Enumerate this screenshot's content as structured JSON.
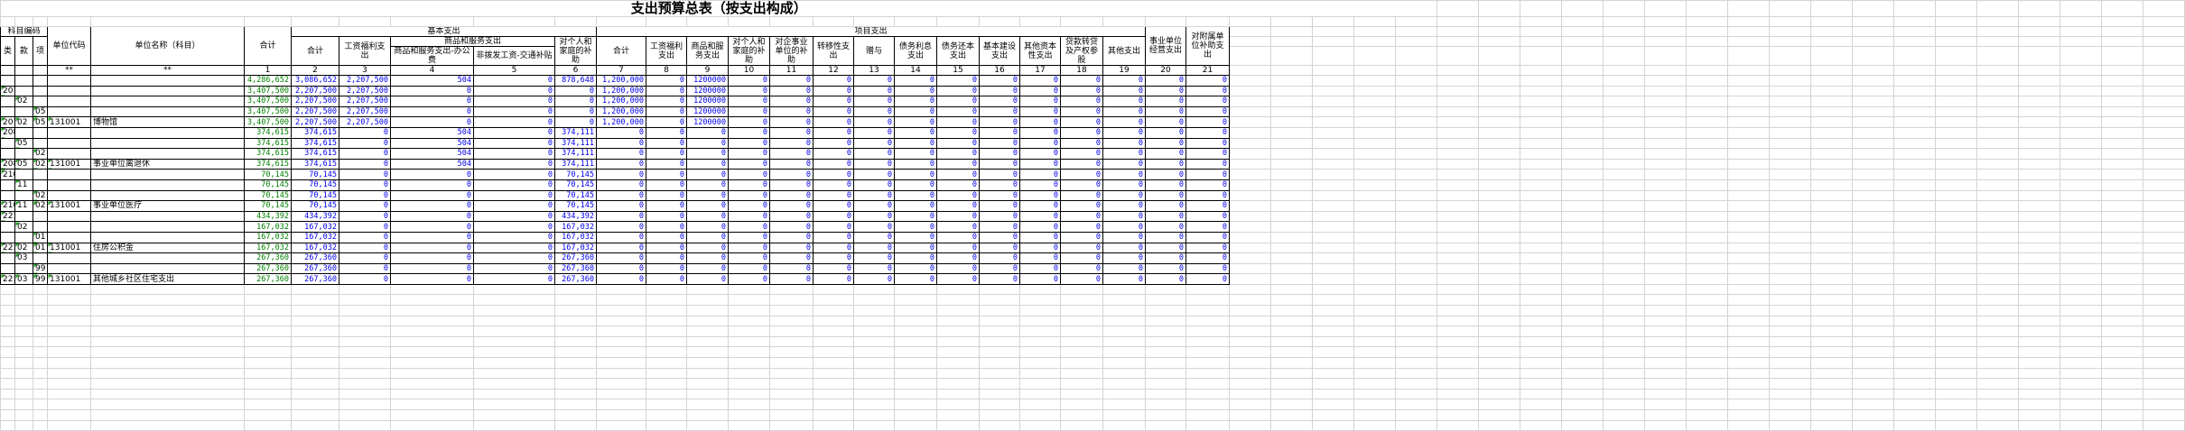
{
  "title": "支出预算总表（按支出构成）",
  "header": {
    "subject_code": "科目编码",
    "unit_code": "单位代码",
    "unit_name": "单位名称（科目）",
    "total": "合计",
    "basic": "基本支出",
    "project": "项目支出",
    "operating": "事业单位经营支出",
    "subsidy": "对附属单位补助支出",
    "class": "类",
    "section": "款",
    "item": "项",
    "basic_cols": [
      "合计",
      "工资福利支出",
      "商品和服务支出",
      "对个人和家庭的补助"
    ],
    "goods_sub": [
      "商品和服务支出-办公费",
      "非拨发工资-交通补贴"
    ],
    "project_cols": [
      "合计",
      "工资福利支出",
      "商品和服务支出",
      "对个人和家庭的补助",
      "对企事业单位的补助",
      "转移性支出",
      "赠与",
      "债务利息支出",
      "债务还本支出",
      "基本建设支出",
      "其他资本性支出",
      "贷款转贷及产权参股",
      "其他支出"
    ],
    "stars": [
      "**",
      "**"
    ],
    "col_numbers": [
      "1",
      "2",
      "3",
      "4",
      "5",
      "6",
      "7",
      "8",
      "9",
      "10",
      "11",
      "12",
      "13",
      "14",
      "15",
      "16",
      "17",
      "18",
      "19",
      "20",
      "21"
    ]
  },
  "rows": [
    [
      null,
      null,
      null,
      null,
      null,
      "4,286,652",
      "3,086,652",
      "2,207,500",
      "504",
      "0",
      "878,648",
      "1,200,000",
      "0",
      "1200000",
      "0",
      "0",
      "0",
      "0",
      "0",
      "0",
      "0",
      "0",
      "0",
      "0",
      "0",
      "0"
    ],
    [
      "207",
      null,
      null,
      null,
      null,
      "3,407,500",
      "2,207,500",
      "2,207,500",
      "0",
      "0",
      "0",
      "1,200,000",
      "0",
      "1200000",
      "0",
      "0",
      "0",
      "0",
      "0",
      "0",
      "0",
      "0",
      "0",
      "0",
      "0",
      "0"
    ],
    [
      null,
      "02",
      null,
      null,
      null,
      "3,407,500",
      "2,207,500",
      "2,207,500",
      "0",
      "0",
      "0",
      "1,200,000",
      "0",
      "1200000",
      "0",
      "0",
      "0",
      "0",
      "0",
      "0",
      "0",
      "0",
      "0",
      "0",
      "0",
      "0"
    ],
    [
      null,
      null,
      "05",
      null,
      null,
      "3,407,500",
      "2,207,500",
      "2,207,500",
      "0",
      "0",
      "0",
      "1,200,000",
      "0",
      "1200000",
      "0",
      "0",
      "0",
      "0",
      "0",
      "0",
      "0",
      "0",
      "0",
      "0",
      "0",
      "0"
    ],
    [
      "207",
      "02",
      "05",
      "131001",
      "博物馆",
      "3,407,500",
      "2,207,500",
      "2,207,500",
      "0",
      "0",
      "0",
      "1,200,000",
      "0",
      "1200000",
      "0",
      "0",
      "0",
      "0",
      "0",
      "0",
      "0",
      "0",
      "0",
      "0",
      "0",
      "0"
    ],
    [
      "208",
      null,
      null,
      null,
      null,
      "374,615",
      "374,615",
      "0",
      "504",
      "0",
      "374,111",
      "0",
      "0",
      "0",
      "0",
      "0",
      "0",
      "0",
      "0",
      "0",
      "0",
      "0",
      "0",
      "0",
      "0",
      "0"
    ],
    [
      null,
      "05",
      null,
      null,
      null,
      "374,615",
      "374,615",
      "0",
      "504",
      "0",
      "374,111",
      "0",
      "0",
      "0",
      "0",
      "0",
      "0",
      "0",
      "0",
      "0",
      "0",
      "0",
      "0",
      "0",
      "0",
      "0"
    ],
    [
      null,
      null,
      "02",
      null,
      null,
      "374,615",
      "374,615",
      "0",
      "504",
      "0",
      "374,111",
      "0",
      "0",
      "0",
      "0",
      "0",
      "0",
      "0",
      "0",
      "0",
      "0",
      "0",
      "0",
      "0",
      "0",
      "0"
    ],
    [
      "208",
      "05",
      "02",
      "131001",
      "事业单位离退休",
      "374,615",
      "374,615",
      "0",
      "504",
      "0",
      "374,111",
      "0",
      "0",
      "0",
      "0",
      "0",
      "0",
      "0",
      "0",
      "0",
      "0",
      "0",
      "0",
      "0",
      "0",
      "0"
    ],
    [
      "210",
      null,
      null,
      null,
      null,
      "70,145",
      "70,145",
      "0",
      "0",
      "0",
      "70,145",
      "0",
      "0",
      "0",
      "0",
      "0",
      "0",
      "0",
      "0",
      "0",
      "0",
      "0",
      "0",
      "0",
      "0",
      "0"
    ],
    [
      null,
      "11",
      null,
      null,
      null,
      "70,145",
      "70,145",
      "0",
      "0",
      "0",
      "70,145",
      "0",
      "0",
      "0",
      "0",
      "0",
      "0",
      "0",
      "0",
      "0",
      "0",
      "0",
      "0",
      "0",
      "0",
      "0"
    ],
    [
      null,
      null,
      "02",
      null,
      null,
      "70,145",
      "70,145",
      "0",
      "0",
      "0",
      "70,145",
      "0",
      "0",
      "0",
      "0",
      "0",
      "0",
      "0",
      "0",
      "0",
      "0",
      "0",
      "0",
      "0",
      "0",
      "0"
    ],
    [
      "210",
      "11",
      "02",
      "131001",
      "事业单位医疗",
      "70,145",
      "70,145",
      "0",
      "0",
      "0",
      "70,145",
      "0",
      "0",
      "0",
      "0",
      "0",
      "0",
      "0",
      "0",
      "0",
      "0",
      "0",
      "0",
      "0",
      "0",
      "0"
    ],
    [
      "221",
      null,
      null,
      null,
      null,
      "434,392",
      "434,392",
      "0",
      "0",
      "0",
      "434,392",
      "0",
      "0",
      "0",
      "0",
      "0",
      "0",
      "0",
      "0",
      "0",
      "0",
      "0",
      "0",
      "0",
      "0",
      "0"
    ],
    [
      null,
      "02",
      null,
      null,
      null,
      "167,032",
      "167,032",
      "0",
      "0",
      "0",
      "167,032",
      "0",
      "0",
      "0",
      "0",
      "0",
      "0",
      "0",
      "0",
      "0",
      "0",
      "0",
      "0",
      "0",
      "0",
      "0"
    ],
    [
      null,
      null,
      "01",
      null,
      null,
      "167,032",
      "167,032",
      "0",
      "0",
      "0",
      "167,032",
      "0",
      "0",
      "0",
      "0",
      "0",
      "0",
      "0",
      "0",
      "0",
      "0",
      "0",
      "0",
      "0",
      "0",
      "0"
    ],
    [
      "221",
      "02",
      "01",
      "131001",
      "住房公积金",
      "167,032",
      "167,032",
      "0",
      "0",
      "0",
      "167,032",
      "0",
      "0",
      "0",
      "0",
      "0",
      "0",
      "0",
      "0",
      "0",
      "0",
      "0",
      "0",
      "0",
      "0",
      "0"
    ],
    [
      null,
      "03",
      null,
      null,
      null,
      "267,360",
      "267,360",
      "0",
      "0",
      "0",
      "267,360",
      "0",
      "0",
      "0",
      "0",
      "0",
      "0",
      "0",
      "0",
      "0",
      "0",
      "0",
      "0",
      "0",
      "0",
      "0"
    ],
    [
      null,
      null,
      "99",
      null,
      null,
      "267,360",
      "267,360",
      "0",
      "0",
      "0",
      "267,360",
      "0",
      "0",
      "0",
      "0",
      "0",
      "0",
      "0",
      "0",
      "0",
      "0",
      "0",
      "0",
      "0",
      "0",
      "0"
    ],
    [
      "221",
      "03",
      "99",
      "131001",
      "其他城乡社区住宅支出",
      "267,360",
      "267,360",
      "0",
      "0",
      "0",
      "267,360",
      "0",
      "0",
      "0",
      "0",
      "0",
      "0",
      "0",
      "0",
      "0",
      "0",
      "0",
      "0",
      "0",
      "0",
      "0"
    ]
  ]
}
